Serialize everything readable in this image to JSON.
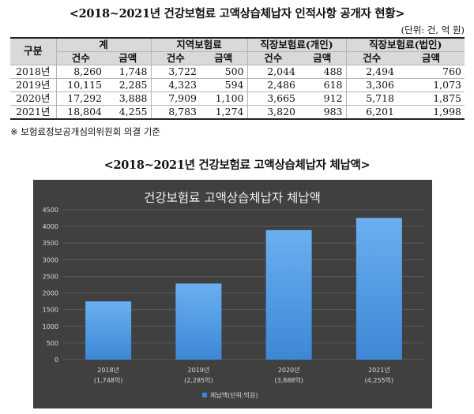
{
  "table_title": "<2018~2021년 건강보험료 고액상습체납자 인적사항 공개자 현황>",
  "unit": "(단위: 건, 억 원)",
  "table": {
    "header_gubun": "구분",
    "groups": [
      "계",
      "지역보험료",
      "직장보험료(개인)",
      "직장보험료(법인)"
    ],
    "subheaders": [
      "건수",
      "금액",
      "건수",
      "금액",
      "건수",
      "금액",
      "건수",
      "금액"
    ],
    "rows": [
      {
        "year": "2018년",
        "cells": [
          "8,260",
          "1,748",
          "3,722",
          "500",
          "2,044",
          "488",
          "2,494",
          "760"
        ]
      },
      {
        "year": "2019년",
        "cells": [
          "10,115",
          "2,285",
          "4,323",
          "594",
          "2,486",
          "618",
          "3,306",
          "1,073"
        ]
      },
      {
        "year": "2020년",
        "cells": [
          "17,292",
          "3,888",
          "7,909",
          "1,100",
          "3,665",
          "912",
          "5,718",
          "1,875"
        ]
      },
      {
        "year": "2021년",
        "cells": [
          "18,804",
          "4,255",
          "8,783",
          "1,274",
          "3,820",
          "983",
          "6,201",
          "1,998"
        ]
      }
    ]
  },
  "note": "※ 보험료정보공개심의위원회 의결 기준",
  "chart_section_title": "<2018~2021년 건강보험료 고액상습체납자 체납액>",
  "chart_data": {
    "type": "bar",
    "title": "건강보험료 고액상습체납자 체납액",
    "categories": [
      "2018년",
      "2019년",
      "2020년",
      "2021년"
    ],
    "category_sublabels": [
      "(1,748억)",
      "(2,285억)",
      "(3,888억)",
      "(4,255억)"
    ],
    "series": [
      {
        "name": "체납액(단위:억원)",
        "values": [
          1748,
          2285,
          3888,
          4255
        ]
      }
    ],
    "ylim": [
      0,
      4500
    ],
    "yticks": [
      0,
      500,
      1000,
      1500,
      2000,
      2500,
      3000,
      3500,
      4000,
      4500
    ],
    "grid": true,
    "legend": "bottom",
    "colors": {
      "background": "#404040",
      "bar_top": "#6ab0f0",
      "bar_bottom": "#3d87d6",
      "grid": "#5a5a5a",
      "text": "#d9d9d9",
      "title": "#f2f2f2"
    }
  }
}
